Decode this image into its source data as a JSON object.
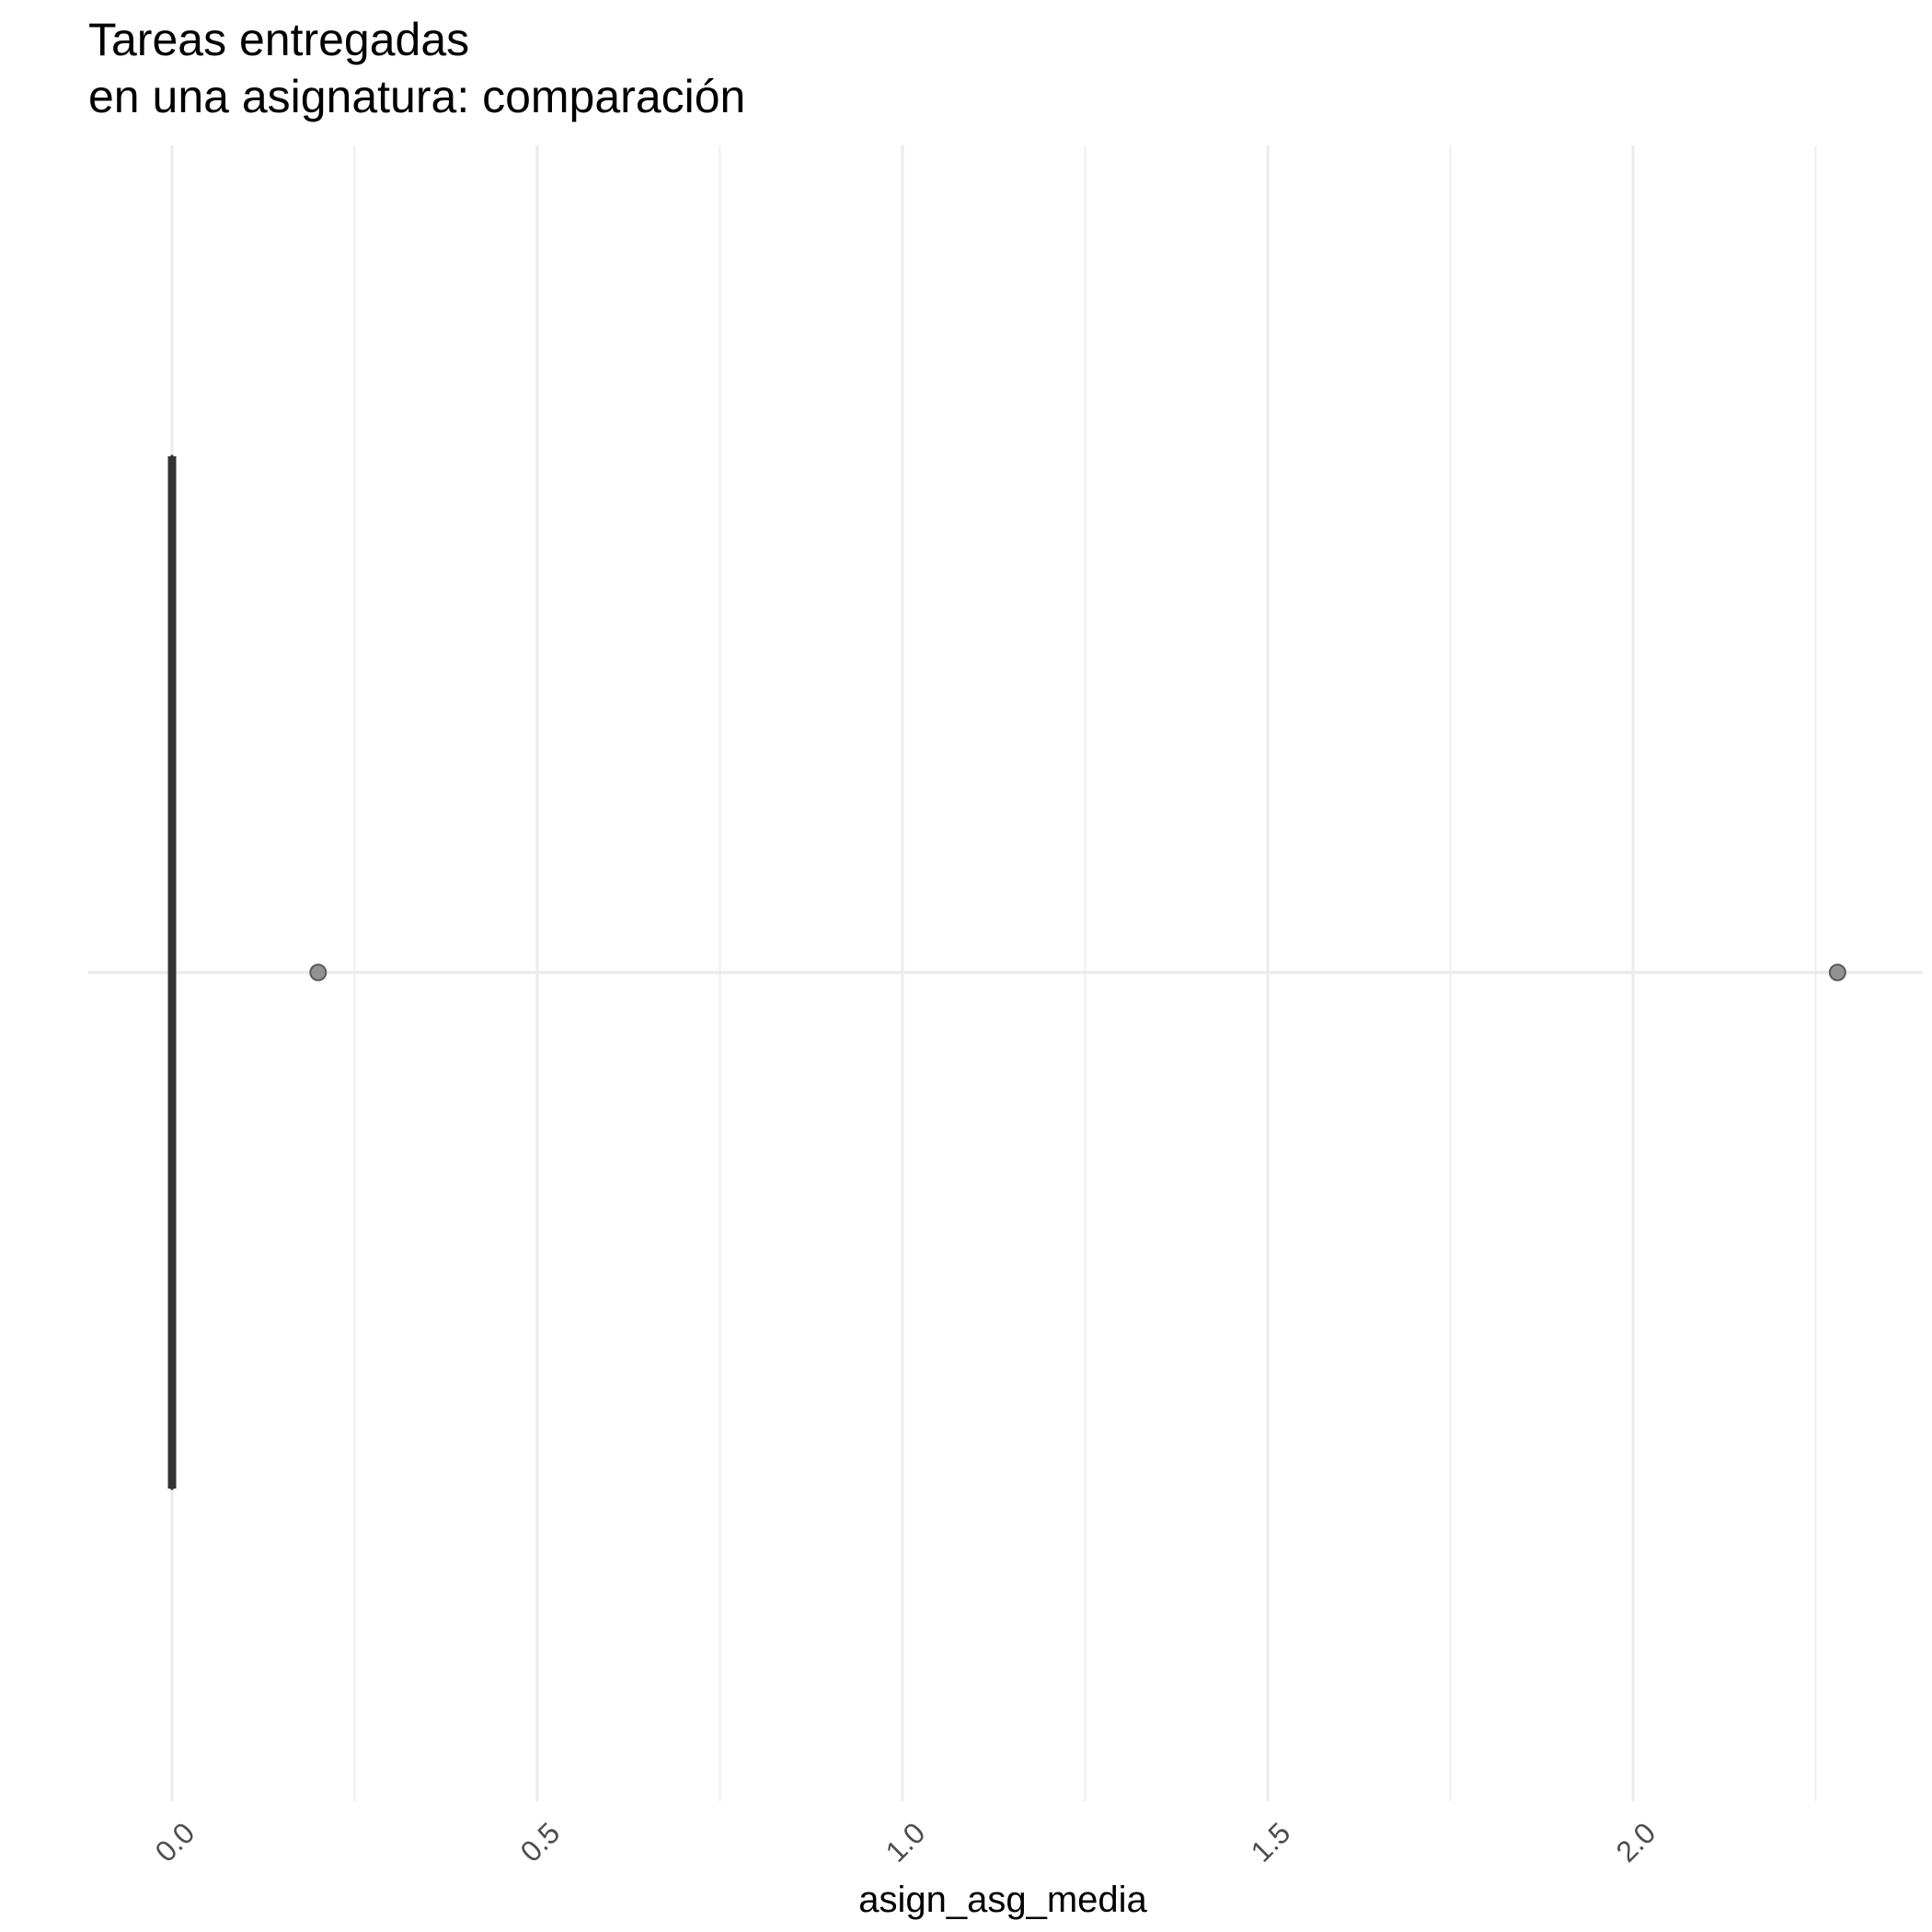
{
  "chart_data": {
    "type": "boxplot",
    "title": "Tareas entregadas",
    "subtitle": "en una asignatura: comparación",
    "xlabel": "asign_asg_media",
    "ylabel": "",
    "xlim": [
      -0.115,
      2.4
    ],
    "x_ticks": [
      0.0,
      0.5,
      1.0,
      1.5,
      2.0
    ],
    "x_tick_labels": [
      "0.0",
      "0.5",
      "1.0",
      "1.5",
      "2.0"
    ],
    "x_minor_ticks": [
      0.25,
      0.75,
      1.25,
      1.75,
      2.25
    ],
    "grid": true,
    "box": {
      "min": 0.0,
      "q1": 0.0,
      "median": 0.0,
      "q3": 0.0,
      "max": 0.0
    },
    "outliers": [
      0.2,
      2.28
    ],
    "colors": {
      "box_line": "#333333",
      "outlier": "#808080",
      "grid": "#ebebeb",
      "tick_label": "#4d4d4d"
    }
  }
}
